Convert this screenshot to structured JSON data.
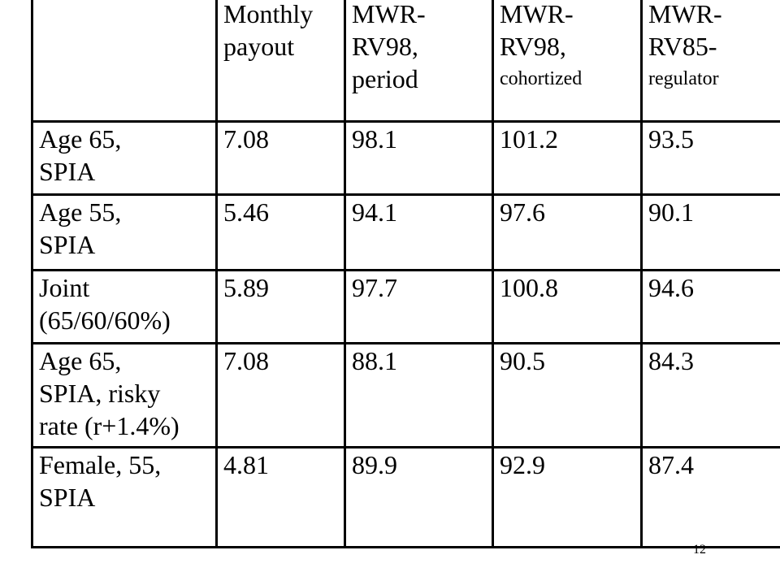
{
  "header": {
    "col1": "",
    "col2": [
      "Monthly",
      "payout"
    ],
    "col3": [
      "MWR-",
      "RV98,",
      "period"
    ],
    "col4": [
      "MWR-",
      "RV98,",
      "cohortized"
    ],
    "col5": [
      "MWR-",
      "RV85-",
      "regulator"
    ]
  },
  "rows": [
    {
      "label": [
        "Age 65,",
        "SPIA"
      ],
      "payout": "7.08",
      "rv98_period": "98.1",
      "rv98_cohort": "101.2",
      "rv85_regulator": "93.5"
    },
    {
      "label": [
        "Age 55,",
        "SPIA"
      ],
      "payout": "5.46",
      "rv98_period": "94.1",
      "rv98_cohort": "97.6",
      "rv85_regulator": "90.1"
    },
    {
      "label": [
        "Joint",
        "(65/60/60%)"
      ],
      "payout": "5.89",
      "rv98_period": "97.7",
      "rv98_cohort": "100.8",
      "rv85_regulator": "94.6"
    },
    {
      "label": [
        "Age 65,",
        "SPIA, risky",
        "rate (r+1.4%)"
      ],
      "payout": "7.08",
      "rv98_period": "88.1",
      "rv98_cohort": "90.5",
      "rv85_regulator": "84.3"
    },
    {
      "label": [
        "Female, 55,",
        "SPIA"
      ],
      "payout": "4.81",
      "rv98_period": "89.9",
      "rv98_cohort": "92.9",
      "rv85_regulator": "87.4"
    }
  ],
  "page_number": "12"
}
